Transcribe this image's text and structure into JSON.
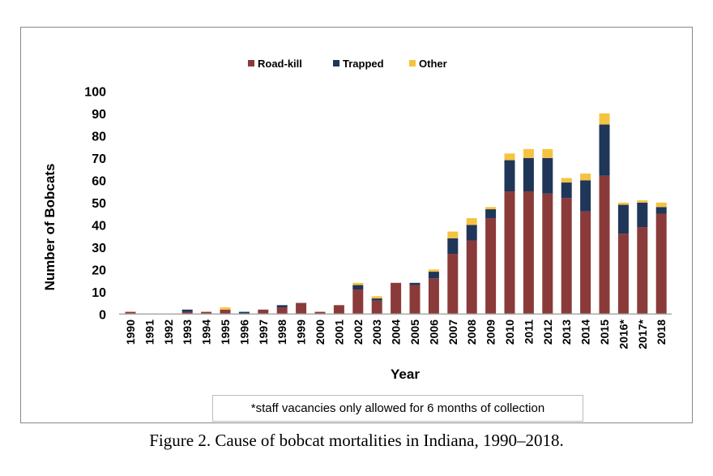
{
  "chart_data": {
    "type": "bar",
    "stacked": true,
    "categories": [
      "1990",
      "1991",
      "1992",
      "1993",
      "1994",
      "1995",
      "1996",
      "1997",
      "1998",
      "1999",
      "2000",
      "2001",
      "2002",
      "2003",
      "2004",
      "2005",
      "2006",
      "2007",
      "2008",
      "2009",
      "2010",
      "2011",
      "2012",
      "2013",
      "2014",
      "2015",
      "2016*",
      "2017*",
      "2018"
    ],
    "series": [
      {
        "name": "Road-kill",
        "color": "#8b3a3a",
        "values": [
          1,
          0,
          0,
          1,
          1,
          2,
          0,
          2,
          3,
          5,
          1,
          4,
          11,
          6,
          14,
          13,
          16,
          27,
          33,
          43,
          55,
          55,
          54,
          52,
          46,
          62,
          36,
          39,
          45
        ]
      },
      {
        "name": "Trapped",
        "color": "#1f3659",
        "values": [
          0,
          0,
          0,
          1,
          0,
          0,
          1,
          0,
          1,
          0,
          0,
          0,
          2,
          1,
          0,
          1,
          3,
          7,
          7,
          4,
          14,
          15,
          16,
          7,
          14,
          23,
          13,
          11,
          3
        ]
      },
      {
        "name": "Other",
        "color": "#f5c342",
        "values": [
          0,
          0,
          0,
          0,
          0,
          1,
          0,
          0,
          0,
          0,
          0,
          0,
          1,
          1,
          0,
          0,
          1,
          3,
          3,
          1,
          3,
          4,
          4,
          2,
          3,
          5,
          1,
          1,
          2
        ]
      }
    ],
    "xlabel": "Year",
    "ylabel": "Number of Bobcats",
    "ylim": [
      0,
      100
    ],
    "yticks": [
      "0",
      "10",
      "20",
      "30",
      "40",
      "50",
      "60",
      "70",
      "80",
      "90",
      "100"
    ],
    "grid": false,
    "legend": "top",
    "note": "*staff vacancies only allowed for 6 months of collection"
  },
  "caption": "Figure 2. Cause of bobcat mortalities in Indiana, 1990–2018."
}
